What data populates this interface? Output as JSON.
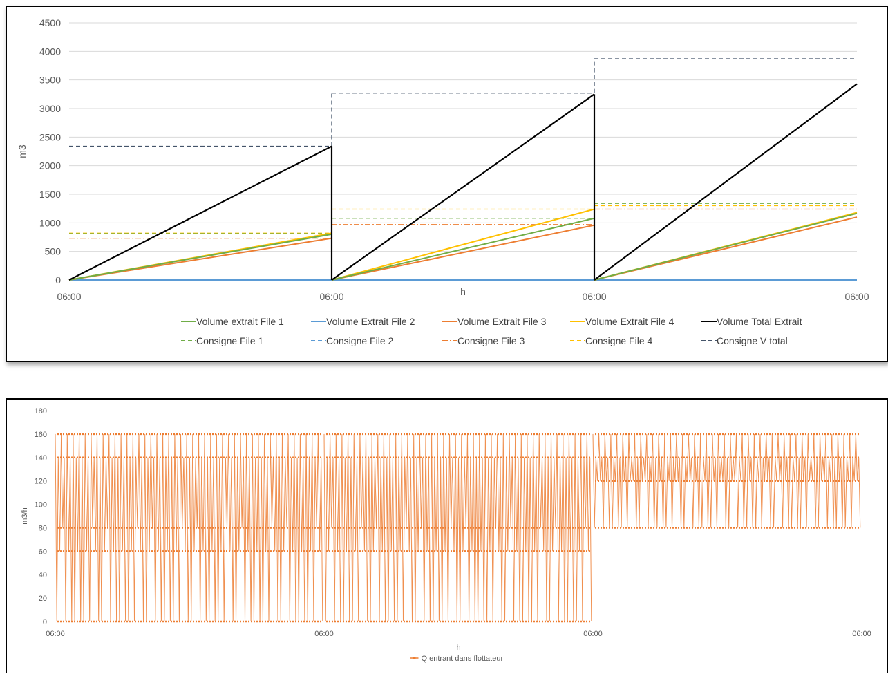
{
  "chart_data": [
    {
      "type": "line",
      "title": "",
      "xlabel": "h",
      "ylabel": "m3",
      "ylim": [
        0,
        4500
      ],
      "yticks": [
        0,
        500,
        1000,
        1500,
        2000,
        2500,
        3000,
        3500,
        4000,
        4500
      ],
      "xticks": [
        "06:00",
        "06:00",
        "06:00",
        "06:00"
      ],
      "grid": "horizontal",
      "legend_position": "bottom",
      "series": [
        {
          "name": "Volume extrait File 1",
          "color": "#70AD47",
          "style": "solid",
          "segments": [
            [
              0,
              800
            ],
            [
              0,
              1080
            ],
            [
              0,
              1165
            ]
          ]
        },
        {
          "name": "Volume Extrait File 2",
          "color": "#5B9BD5",
          "style": "solid",
          "segments": [
            [
              0,
              0
            ],
            [
              0,
              0
            ],
            [
              0,
              0
            ]
          ]
        },
        {
          "name": "Volume Extrait File 3",
          "color": "#ED7D31",
          "style": "solid",
          "segments": [
            [
              0,
              730
            ],
            [
              0,
              960
            ],
            [
              0,
              1100
            ]
          ]
        },
        {
          "name": "Volume Extrait File 4",
          "color": "#FFC000",
          "style": "solid",
          "segments": [
            [
              0,
              820
            ],
            [
              0,
              1240
            ],
            [
              0,
              1180
            ]
          ]
        },
        {
          "name": "Volume Total Extrait",
          "color": "#000000",
          "style": "solid",
          "segments": [
            [
              0,
              2340
            ],
            [
              0,
              3250
            ],
            [
              0,
              3430
            ]
          ]
        },
        {
          "name": "Consigne File 1",
          "color": "#70AD47",
          "style": "dash",
          "levels": [
            810,
            1080,
            1340
          ]
        },
        {
          "name": "Consigne File 2",
          "color": "#5B9BD5",
          "style": "dash",
          "levels": [
            0,
            0,
            0
          ]
        },
        {
          "name": "Consigne File 3",
          "color": "#ED7D31",
          "style": "dashdot",
          "levels": [
            730,
            970,
            1240
          ]
        },
        {
          "name": "Consigne File 4",
          "color": "#FFC000",
          "style": "dash",
          "levels": [
            820,
            1240,
            1300
          ]
        },
        {
          "name": "Consigne V total",
          "color": "#44546A",
          "style": "dash",
          "levels": [
            2340,
            3270,
            3870
          ]
        }
      ]
    },
    {
      "type": "line",
      "title": "",
      "xlabel": "h",
      "ylabel": "m3/h",
      "ylim": [
        0,
        180
      ],
      "yticks": [
        0,
        20,
        40,
        60,
        80,
        100,
        120,
        140,
        160,
        180
      ],
      "xticks": [
        "06:00",
        "06:00",
        "06:00",
        "06:00"
      ],
      "grid": "none",
      "legend_position": "bottom",
      "series": [
        {
          "name": "Q entrant dans flottateur",
          "color": "#ED7D31",
          "style": "solid-with-markers",
          "segments": [
            {
              "low": 0,
              "mid": 60,
              "alt": 80,
              "high": 140,
              "peak": 160
            },
            {
              "low": 0,
              "mid": 60,
              "alt": 80,
              "high": 140,
              "peak": 160
            },
            {
              "low": 80,
              "mid": 120,
              "alt": 120,
              "high": 140,
              "peak": 160
            }
          ]
        }
      ]
    }
  ]
}
